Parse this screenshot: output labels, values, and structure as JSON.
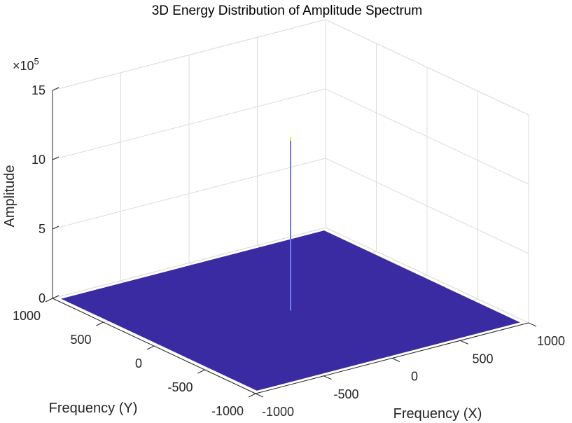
{
  "chart_data": {
    "type": "surface3d",
    "title": "3D Energy Distribution of Amplitude Spectrum",
    "xlabel": "Frequency (X)",
    "ylabel": "Frequency (Y)",
    "zlabel": "Amplitude",
    "z_exponent_label": "×10",
    "z_exponent_power": "5",
    "x_ticks": [
      -1000,
      -500,
      0,
      500,
      1000
    ],
    "y_ticks": [
      -1000,
      -500,
      0,
      500,
      1000
    ],
    "z_ticks": [
      0,
      5,
      10,
      15
    ],
    "x_tick_labels": [
      "-1000",
      "-500",
      "0",
      "500",
      "1000"
    ],
    "y_tick_labels": [
      "-1000",
      "-500",
      "0",
      "500",
      "1000"
    ],
    "z_tick_labels": [
      "0",
      "5",
      "10",
      "15"
    ],
    "xlim": [
      -1000,
      1000
    ],
    "ylim": [
      -1000,
      1000
    ],
    "zlim": [
      0,
      15
    ],
    "surface_xlim": [
      -960,
      960
    ],
    "surface_ylim": [
      -960,
      960
    ],
    "base_level": 0,
    "peak": {
      "x": 0,
      "y": 0,
      "z": 12.5
    },
    "grid": true,
    "colors": {
      "surface": "#3a2ba3",
      "spike": "#6b7bf0",
      "peak_tip": "#f3e12a",
      "axis": "#262626",
      "grid": "#dcdcdc"
    }
  }
}
